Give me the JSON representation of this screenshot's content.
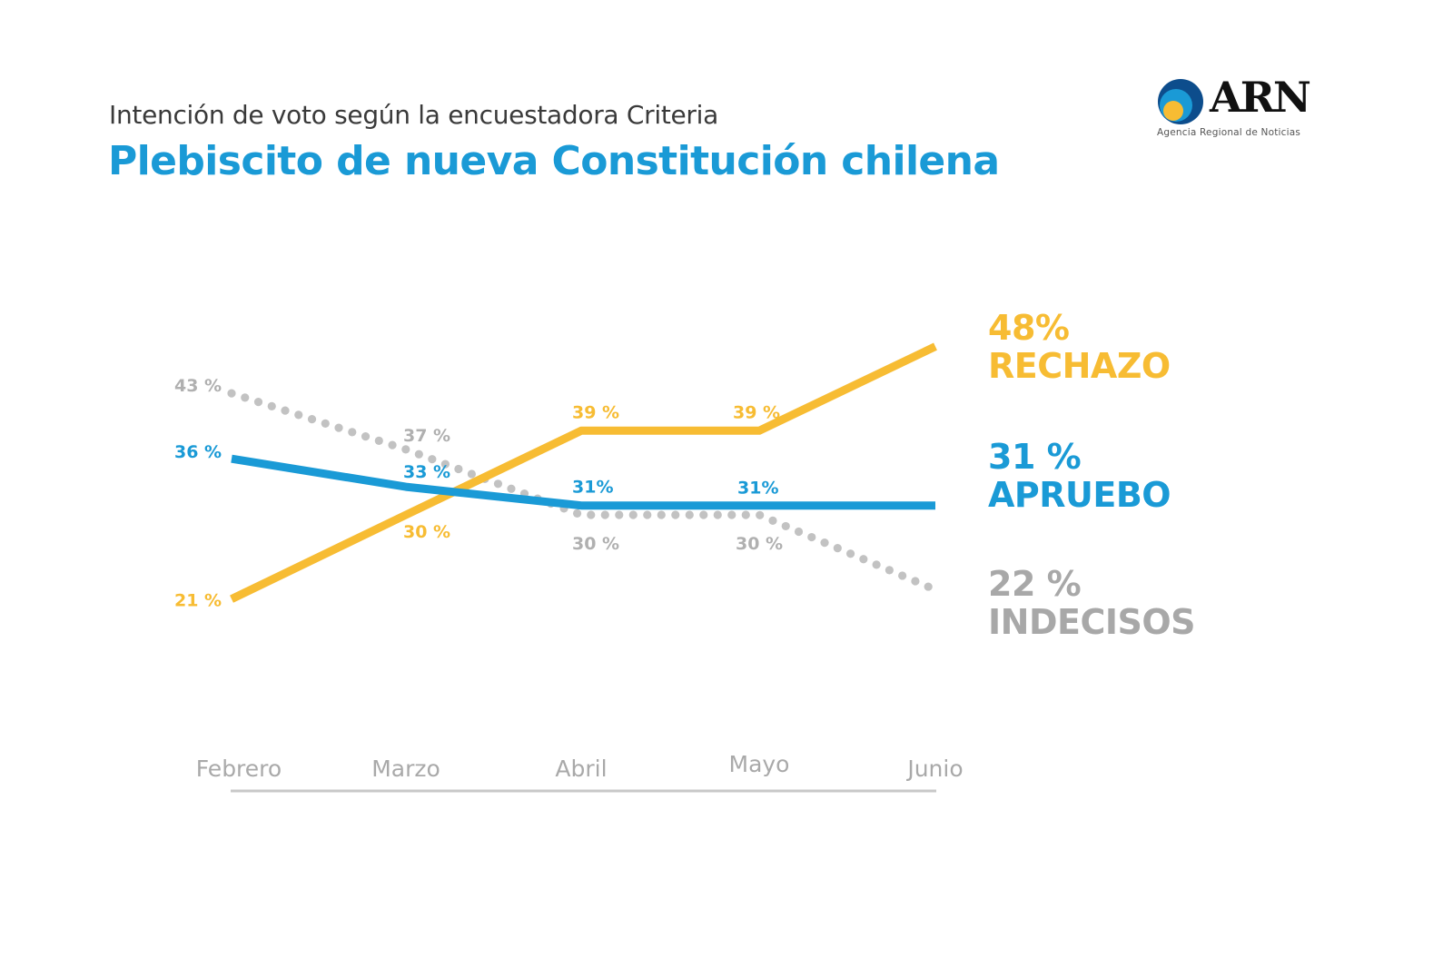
{
  "header": {
    "subtitle": "Intención de voto según la encuestadora Criteria",
    "title": "Plebiscito de nueva Constitución chilena"
  },
  "logo": {
    "name": "ARN",
    "tagline": "Agencia Regional de Noticias",
    "icon": "concentric-circles-logo-icon",
    "colors": [
      "#0d4d8c",
      "#1a9ad6",
      "#f7bc33"
    ]
  },
  "chart_data": {
    "type": "line",
    "title": "Plebiscito de nueva Constitución chilena",
    "subtitle": "Intención de voto según la encuestadora Criteria",
    "xlabel": "",
    "ylabel": "",
    "categories": [
      "Febrero",
      "Marzo",
      "Abril",
      "Mayo",
      "Junio"
    ],
    "ylim": [
      20,
      50
    ],
    "grid": false,
    "legend_placement": "right",
    "series": [
      {
        "name": "RECHAZO",
        "color": "#f7bc33",
        "style": "solid",
        "values": [
          21,
          30,
          39,
          39,
          48
        ],
        "point_labels": [
          "21 %",
          "30 %",
          "39 %",
          "39 %",
          null
        ],
        "final_label": "48%"
      },
      {
        "name": "APRUEBO",
        "color": "#1a9ad6",
        "style": "solid",
        "values": [
          36,
          33,
          31,
          31,
          31
        ],
        "point_labels": [
          "36 %",
          "33 %",
          "31%",
          "31%",
          null
        ],
        "final_label": "31 %"
      },
      {
        "name": "INDECISOS",
        "color": "#a8a8a8",
        "style": "dotted",
        "values": [
          43,
          37,
          30,
          30,
          22
        ],
        "point_labels": [
          "43 %",
          "37 %",
          "30 %",
          "30 %",
          null
        ],
        "final_label": "22 %"
      }
    ]
  }
}
